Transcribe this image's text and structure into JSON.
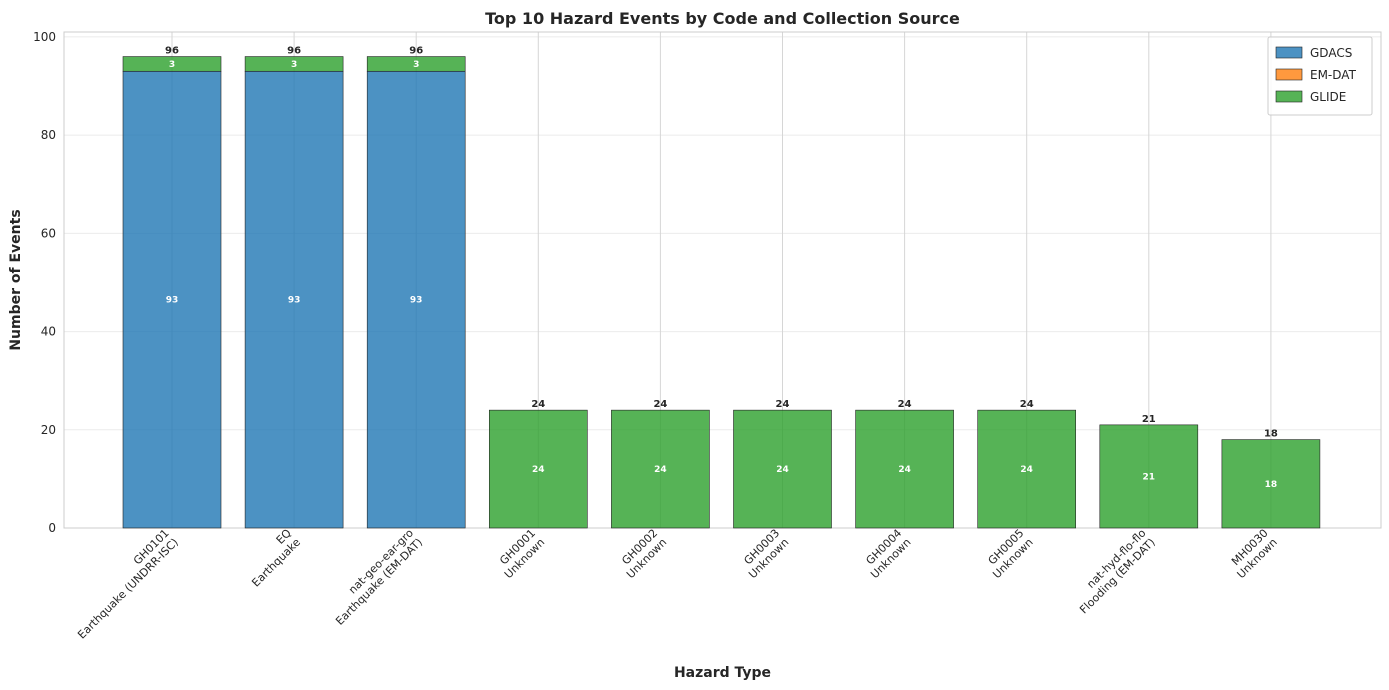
{
  "chart_data": {
    "type": "bar",
    "stacked": true,
    "title": "Top 10 Hazard Events by Code and Collection Source",
    "xlabel": "Hazard Type",
    "ylabel": "Number of Events",
    "ylim": [
      0,
      101
    ],
    "yticks": [
      0,
      20,
      40,
      60,
      80,
      100
    ],
    "grid": true,
    "legend_position": "top-right",
    "categories": [
      [
        "GH0101",
        "Earthquake (UNDRR-ISC)"
      ],
      [
        "EQ",
        "Earthquake"
      ],
      [
        "nat-geo-ear-gro",
        "Earthquake (EM-DAT)"
      ],
      [
        "GH0001",
        "Unknown"
      ],
      [
        "GH0002",
        "Unknown"
      ],
      [
        "GH0003",
        "Unknown"
      ],
      [
        "GH0004",
        "Unknown"
      ],
      [
        "GH0005",
        "Unknown"
      ],
      [
        "nat-hyd-flo-flo",
        "Flooding (EM-DAT)"
      ],
      [
        "MH0030",
        "Unknown"
      ]
    ],
    "series": [
      {
        "name": "GDACS",
        "color": "#1f77b4",
        "values": [
          93,
          93,
          93,
          0,
          0,
          0,
          0,
          0,
          0,
          0
        ]
      },
      {
        "name": "EM-DAT",
        "color": "#ff7f0e",
        "values": [
          0,
          0,
          0,
          0,
          0,
          0,
          0,
          0,
          0,
          0
        ]
      },
      {
        "name": "GLIDE",
        "color": "#2ca02c",
        "values": [
          3,
          3,
          3,
          24,
          24,
          24,
          24,
          24,
          21,
          18
        ]
      }
    ],
    "totals": [
      96,
      96,
      96,
      24,
      24,
      24,
      24,
      24,
      21,
      18
    ]
  }
}
